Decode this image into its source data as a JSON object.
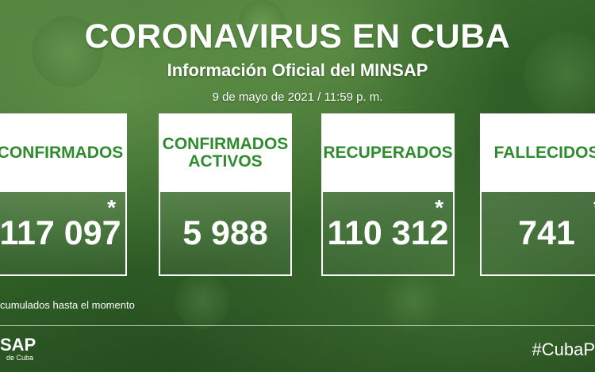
{
  "header": {
    "title": "CORONAVIRUS EN CUBA",
    "subtitle": "Información Oficial del MINSAP",
    "date": "9 de mayo de 2021 / 11:59 p. m."
  },
  "cards": [
    {
      "label": "CONFIRMADOS",
      "value": "117 097",
      "asterisk": "*"
    },
    {
      "label": "CONFIRMADOS ACTIVOS",
      "value": "5 988",
      "asterisk": ""
    },
    {
      "label": "RECUPERADOS",
      "value": "110 312",
      "asterisk": "*"
    },
    {
      "label": "FALLECIDOS",
      "value": "741",
      "asterisk": "*"
    }
  ],
  "footnote": "cumulados hasta el momento",
  "footer": {
    "logo_text": "SAP",
    "logo_subtext": "de Cuba",
    "hashtag": "#CubaP"
  },
  "colors": {
    "label_green": "#2e8b2e",
    "background_green": "#2f5f26"
  }
}
